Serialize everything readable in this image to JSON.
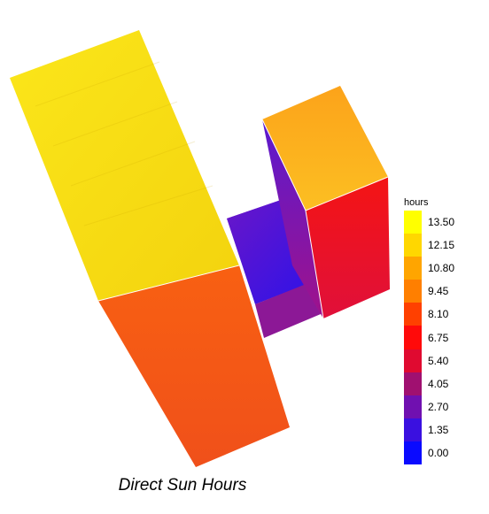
{
  "caption": "Direct Sun Hours",
  "legend": {
    "unit": "hours",
    "labels": [
      "13.50",
      "12.15",
      "10.80",
      "9.45",
      "8.10",
      "6.75",
      "5.40",
      "4.05",
      "2.70",
      "1.35",
      "0.00"
    ],
    "colors": [
      "#ffff00",
      "#ffd700",
      "#ffa500",
      "#ff7f00",
      "#ff4000",
      "#ff0a0a",
      "#e00a30",
      "#a01070",
      "#7010b0",
      "#3a10e0",
      "#0a0aff"
    ]
  },
  "colors": {
    "tower_left_roof": "#f5de10",
    "tower_left_wall": "#f56e0f",
    "tower_right_roof": "#fbb019",
    "tower_right_wall_front": "#ec1525",
    "tower_right_wall_side": "#7217b6",
    "link_roof": "#8a22c0",
    "link_wall": "#3c18e2",
    "link_wall_lower": "#8a1a96"
  }
}
